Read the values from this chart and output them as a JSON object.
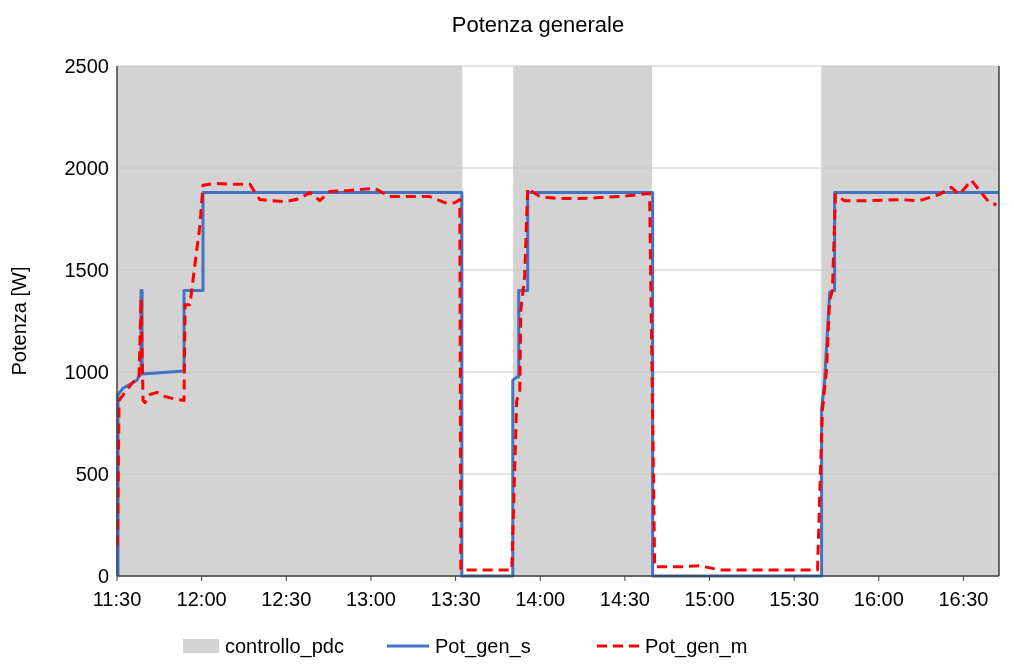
{
  "chart_data": {
    "type": "line",
    "title": "Potenza generale",
    "ylabel": "Potenza [W]",
    "xlim": [
      11.5,
      16.71
    ],
    "xticks": [
      {
        "value": 11.5,
        "label": "11:30"
      },
      {
        "value": 12,
        "label": "12:00"
      },
      {
        "value": 12.5,
        "label": "12:30"
      },
      {
        "value": 13,
        "label": "13:00"
      },
      {
        "value": 13.5,
        "label": "13:30"
      },
      {
        "value": 14,
        "label": "14:00"
      },
      {
        "value": 14.5,
        "label": "14:30"
      },
      {
        "value": 15,
        "label": "15:00"
      },
      {
        "value": 15.5,
        "label": "15:30"
      },
      {
        "value": 16,
        "label": "16:00"
      },
      {
        "value": 16.5,
        "label": "16:30"
      }
    ],
    "ylim": [
      0,
      2500
    ],
    "yticks": [
      0,
      500,
      1000,
      1500,
      2000,
      2500
    ],
    "grid": "y",
    "legend": "bottom",
    "series": [
      {
        "name": "controllo_pdc",
        "type": "area",
        "color": "#d3d3d3",
        "x": [
          11.5,
          13.54,
          13.54,
          13.84,
          13.84,
          14.66,
          14.66,
          15.66,
          15.66,
          16.71
        ],
        "values": [
          2500,
          2500,
          0,
          0,
          2500,
          2500,
          0,
          0,
          2500,
          2500
        ]
      },
      {
        "name": "Pot_gen_s",
        "color": "#4472c4",
        "line_style": "solid",
        "x": [
          11.506,
          11.506,
          11.535,
          11.577,
          11.618,
          11.636,
          11.642,
          11.642,
          11.648,
          11.648,
          11.896,
          11.896,
          12.008,
          12.008,
          13.537,
          13.537,
          13.838,
          13.838,
          13.861,
          13.873,
          13.873,
          13.92,
          13.926,
          13.926,
          14.664,
          14.664,
          15.662,
          15.662,
          15.68,
          15.71,
          15.733,
          15.739,
          15.739,
          16.707
        ],
        "values": [
          0,
          890,
          920,
          940,
          960,
          990,
          990,
          1400,
          1400,
          990,
          1005,
          1400,
          1400,
          1880,
          1880,
          0,
          0,
          960,
          975,
          975,
          1400,
          1400,
          1400,
          1880,
          1880,
          0,
          0,
          815,
          960,
          1390,
          1400,
          1400,
          1880,
          1880
        ]
      },
      {
        "name": "Pot_gen_m",
        "color": "#ff0000",
        "line_style": "dashed",
        "x": [
          11.503,
          11.512,
          11.547,
          11.594,
          11.63,
          11.642,
          11.654,
          11.665,
          11.695,
          11.736,
          11.783,
          11.854,
          11.896,
          11.902,
          11.931,
          11.96,
          11.99,
          12.008,
          12.079,
          12.167,
          12.285,
          12.315,
          12.344,
          12.492,
          12.58,
          12.639,
          12.698,
          12.757,
          12.875,
          13.023,
          13.112,
          13.23,
          13.348,
          13.436,
          13.495,
          13.525,
          13.531,
          13.643,
          13.832,
          13.861,
          13.879,
          13.885,
          13.908,
          13.926,
          13.997,
          14.115,
          14.233,
          14.351,
          14.469,
          14.587,
          14.646,
          14.676,
          14.824,
          14.942,
          15.06,
          15.532,
          15.638,
          15.65,
          15.667,
          15.691,
          15.709,
          15.726,
          15.744,
          15.797,
          15.945,
          16.122,
          16.24,
          16.358,
          16.429,
          16.476,
          16.547,
          16.594,
          16.653,
          16.695
        ],
        "values": [
          150,
          860,
          900,
          950,
          970,
          1360,
          860,
          850,
          890,
          900,
          880,
          865,
          860,
          1330,
          1330,
          1525,
          1720,
          1915,
          1925,
          1920,
          1920,
          1880,
          1845,
          1835,
          1850,
          1880,
          1840,
          1885,
          1890,
          1900,
          1860,
          1860,
          1860,
          1830,
          1830,
          1845,
          30,
          30,
          30,
          860,
          900,
          1300,
          1470,
          1900,
          1860,
          1850,
          1850,
          1855,
          1860,
          1870,
          1875,
          45,
          45,
          50,
          30,
          30,
          30,
          370,
          815,
          1010,
          1350,
          1400,
          1870,
          1840,
          1840,
          1845,
          1840,
          1870,
          1905,
          1870,
          1940,
          1890,
          1830,
          1820
        ]
      }
    ]
  }
}
